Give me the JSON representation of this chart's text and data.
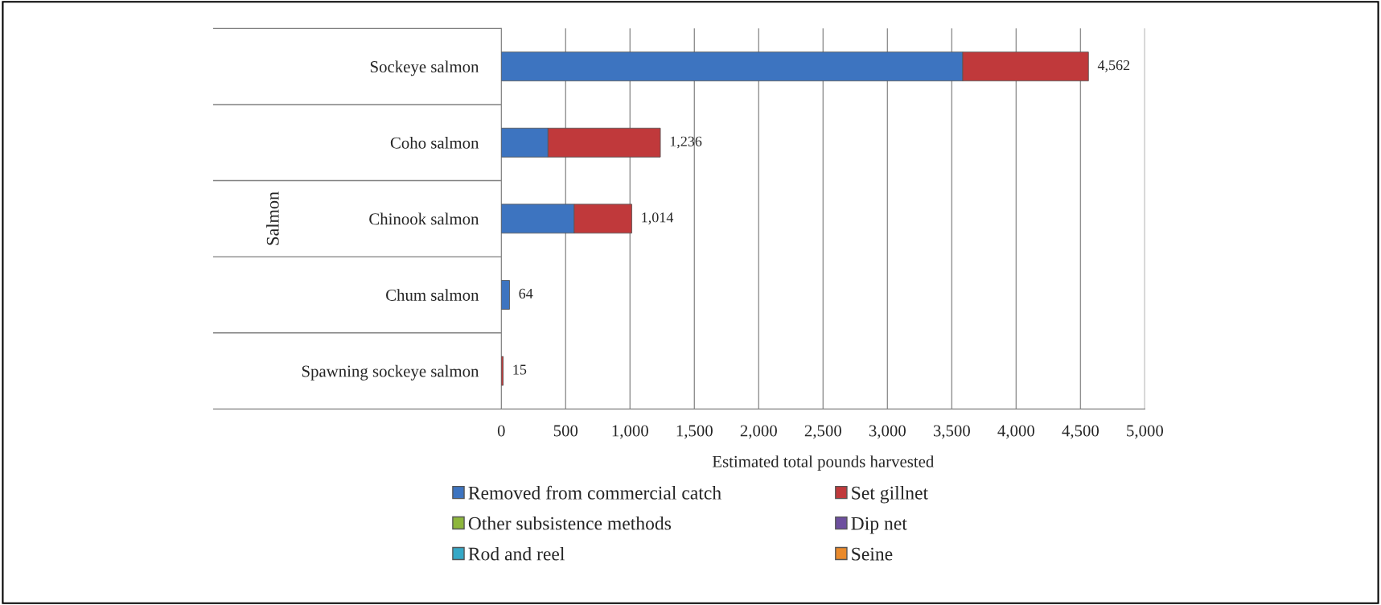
{
  "chart_data": {
    "type": "bar",
    "orientation": "horizontal",
    "stacked": true,
    "categories": [
      "Sockeye salmon",
      "Coho salmon",
      "Chinook salmon",
      "Chum salmon",
      "Spawning sockeye salmon"
    ],
    "series": [
      {
        "name": "Removed from commercial catch",
        "color": "#3d74c0",
        "values": [
          3585,
          363,
          566,
          64,
          null
        ]
      },
      {
        "name": "Set gillnet",
        "color": "#c0393b",
        "values": [
          977,
          873,
          448,
          null,
          15
        ]
      },
      {
        "name": "Other subsistence methods",
        "color": "#8db63c",
        "values": [
          null,
          null,
          null,
          null,
          null
        ]
      },
      {
        "name": "Dip net",
        "color": "#6d4f9e",
        "values": [
          null,
          null,
          null,
          null,
          null
        ]
      },
      {
        "name": "Rod and reel",
        "color": "#35a8c6",
        "values": [
          null,
          null,
          null,
          null,
          null
        ]
      },
      {
        "name": "Seine",
        "color": "#ea8a2b",
        "values": [
          null,
          null,
          null,
          null,
          null
        ]
      }
    ],
    "totals": [
      "4,562",
      "1,236",
      "1,014",
      "64",
      "15"
    ],
    "xlabel": "Estimated total pounds harvested",
    "ylabel": "Salmon",
    "xlim": [
      0,
      5000
    ],
    "xticks": [
      0,
      {
        "value": 500,
        "label": "500"
      },
      {
        "value": 1000,
        "label": "1,000"
      },
      {
        "value": 1500,
        "label": "1,500"
      },
      {
        "value": 2000,
        "label": "2,000"
      },
      {
        "value": 2500,
        "label": "2,500"
      },
      {
        "value": 3000,
        "label": "3,000"
      },
      {
        "value": 3500,
        "label": "3,500"
      },
      {
        "value": 4000,
        "label": "4,000"
      },
      {
        "value": 4500,
        "label": "4,500"
      },
      {
        "value": 5000,
        "label": "5,000"
      }
    ],
    "grid": "x",
    "legend": "bottom"
  }
}
